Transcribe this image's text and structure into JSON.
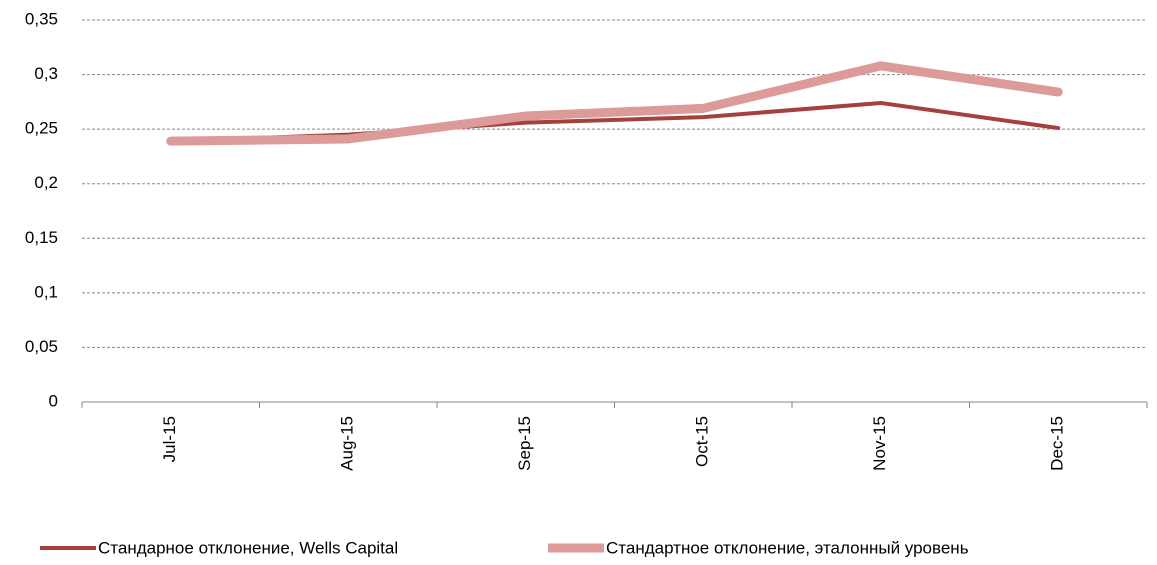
{
  "chart_data": {
    "type": "line",
    "categories": [
      "Jul-15",
      "Aug-15",
      "Sep-15",
      "Oct-15",
      "Nov-15",
      "Dec-15"
    ],
    "series": [
      {
        "name": "Стандарное отклонение, Wells Capital",
        "color": "#a5413c",
        "values": [
          0.239,
          0.245,
          0.256,
          0.261,
          0.274,
          0.251
        ]
      },
      {
        "name": "Стандартное отклонение, эталонный уровень",
        "color": "#dc9a98",
        "values": [
          0.239,
          0.241,
          0.262,
          0.269,
          0.308,
          0.284
        ]
      }
    ],
    "ylim": [
      0,
      0.35
    ],
    "yticks": [
      0,
      {
        "value": 0.05,
        "label": "0,05"
      },
      {
        "value": 0.1,
        "label": "0,1"
      },
      {
        "value": 0.15,
        "label": "0,15"
      },
      {
        "value": 0.2,
        "label": "0,2"
      },
      {
        "value": 0.25,
        "label": "0,25"
      },
      {
        "value": 0.3,
        "label": "0,3"
      },
      {
        "value": 0.35,
        "label": "0,35"
      }
    ],
    "grid": true,
    "legend": "bottom"
  }
}
